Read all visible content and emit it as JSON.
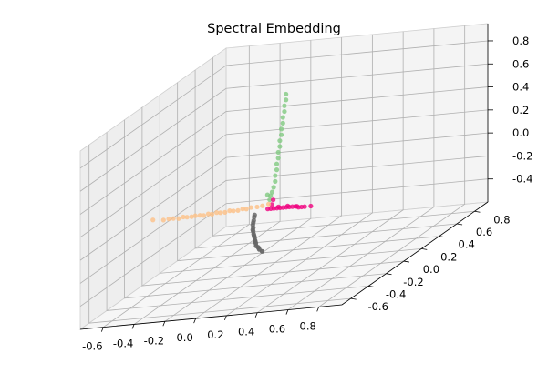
{
  "chart_data": {
    "type": "scatter",
    "projection": "3d",
    "title": "Spectral Embedding",
    "xlabel": "",
    "ylabel": "",
    "zlabel": "",
    "grid": true,
    "xlim": [
      -0.75,
      0.95
    ],
    "ylim": [
      -0.7,
      0.95
    ],
    "zlim": [
      -0.6,
      0.95
    ],
    "x_ticks": [
      "-0.6",
      "-0.4",
      "-0.2",
      "0.0",
      "0.2",
      "0.4",
      "0.6",
      "0.8"
    ],
    "y_ticks": [
      "-0.6",
      "-0.4",
      "-0.2",
      "0.0",
      "0.2",
      "0.4",
      "0.6",
      "0.8"
    ],
    "z_ticks": [
      "-0.4",
      "-0.2",
      "0.0",
      "0.2",
      "0.4",
      "0.6",
      "0.8"
    ],
    "series": [
      {
        "color": "#fdc086",
        "points": [
          [
            -0.72,
            0.07,
            -0.07
          ],
          [
            -0.64,
            0.05,
            -0.07
          ],
          [
            -0.6,
            0.04,
            -0.06
          ],
          [
            -0.57,
            0.04,
            -0.06
          ],
          [
            -0.53,
            0.03,
            -0.06
          ],
          [
            -0.5,
            0.03,
            -0.05
          ],
          [
            -0.47,
            0.02,
            -0.05
          ],
          [
            -0.44,
            0.02,
            -0.05
          ],
          [
            -0.41,
            0.01,
            -0.04
          ],
          [
            -0.38,
            0.01,
            -0.04
          ],
          [
            -0.35,
            0.0,
            -0.04
          ],
          [
            -0.32,
            0.0,
            -0.03
          ],
          [
            -0.29,
            -0.01,
            -0.03
          ],
          [
            -0.26,
            -0.01,
            -0.02
          ],
          [
            -0.23,
            -0.02,
            -0.02
          ],
          [
            -0.2,
            -0.02,
            -0.02
          ],
          [
            -0.17,
            -0.02,
            -0.01
          ],
          [
            -0.14,
            -0.03,
            -0.01
          ],
          [
            -0.11,
            -0.03,
            -0.01
          ],
          [
            -0.08,
            -0.03,
            0.0
          ],
          [
            -0.05,
            -0.04,
            0.0
          ],
          [
            -0.02,
            -0.04,
            0.01
          ],
          [
            0.02,
            -0.04,
            0.01
          ],
          [
            0.06,
            -0.05,
            0.02
          ],
          [
            0.1,
            -0.05,
            0.03
          ]
        ]
      },
      {
        "color": "#7fc97f",
        "points": [
          [
            0.05,
            0.06,
            0.05
          ],
          [
            0.06,
            0.06,
            0.08
          ],
          [
            0.07,
            0.06,
            0.12
          ],
          [
            0.08,
            0.06,
            0.17
          ],
          [
            0.08,
            0.06,
            0.22
          ],
          [
            0.09,
            0.06,
            0.27
          ],
          [
            0.09,
            0.06,
            0.32
          ],
          [
            0.1,
            0.06,
            0.37
          ],
          [
            0.1,
            0.06,
            0.42
          ],
          [
            0.11,
            0.06,
            0.47
          ],
          [
            0.11,
            0.06,
            0.52
          ],
          [
            0.12,
            0.06,
            0.57
          ],
          [
            0.12,
            0.06,
            0.62
          ],
          [
            0.13,
            0.06,
            0.67
          ],
          [
            0.13,
            0.06,
            0.72
          ],
          [
            0.14,
            0.06,
            0.77
          ],
          [
            0.14,
            0.06,
            0.82
          ],
          [
            0.15,
            0.06,
            0.87
          ],
          [
            0.15,
            0.06,
            0.92
          ],
          [
            0.03,
            0.06,
            0.06
          ],
          [
            0.05,
            0.05,
            0.02
          ]
        ]
      },
      {
        "color": "#f0027f",
        "points": [
          [
            0.09,
            0.02,
            0.03
          ],
          [
            0.08,
            0.02,
            -0.01
          ],
          [
            0.06,
            0.01,
            -0.04
          ],
          [
            0.08,
            0.01,
            -0.04
          ],
          [
            0.1,
            0.01,
            -0.04
          ],
          [
            0.12,
            0.01,
            -0.04
          ],
          [
            0.14,
            0.01,
            -0.04
          ],
          [
            0.16,
            0.01,
            -0.04
          ],
          [
            0.18,
            0.01,
            -0.04
          ],
          [
            0.2,
            0.01,
            -0.04
          ],
          [
            0.22,
            0.01,
            -0.04
          ],
          [
            0.24,
            0.01,
            -0.04
          ],
          [
            0.26,
            0.01,
            -0.05
          ],
          [
            0.28,
            0.01,
            -0.05
          ],
          [
            0.3,
            0.01,
            -0.05
          ],
          [
            0.13,
            0.01,
            -0.03
          ],
          [
            0.19,
            0.01,
            -0.03
          ],
          [
            0.25,
            0.01,
            -0.04
          ],
          [
            0.34,
            0.01,
            -0.05
          ]
        ]
      },
      {
        "color": "#666666",
        "points": [
          [
            0.05,
            -0.12,
            -0.02
          ],
          [
            0.07,
            -0.16,
            -0.02
          ],
          [
            0.09,
            -0.2,
            -0.03
          ],
          [
            0.11,
            -0.24,
            -0.03
          ],
          [
            0.13,
            -0.28,
            -0.03
          ],
          [
            0.15,
            -0.31,
            -0.04
          ],
          [
            0.17,
            -0.35,
            -0.04
          ],
          [
            0.19,
            -0.38,
            -0.04
          ],
          [
            0.21,
            -0.41,
            -0.05
          ],
          [
            0.23,
            -0.44,
            -0.05
          ],
          [
            0.25,
            -0.47,
            -0.05
          ],
          [
            0.27,
            -0.5,
            -0.06
          ],
          [
            0.29,
            -0.53,
            -0.06
          ],
          [
            0.31,
            -0.56,
            -0.06
          ],
          [
            0.33,
            -0.59,
            -0.07
          ],
          [
            0.36,
            -0.62,
            -0.07
          ],
          [
            0.39,
            -0.66,
            -0.07
          ],
          [
            0.42,
            -0.68,
            -0.08
          ]
        ]
      }
    ]
  }
}
